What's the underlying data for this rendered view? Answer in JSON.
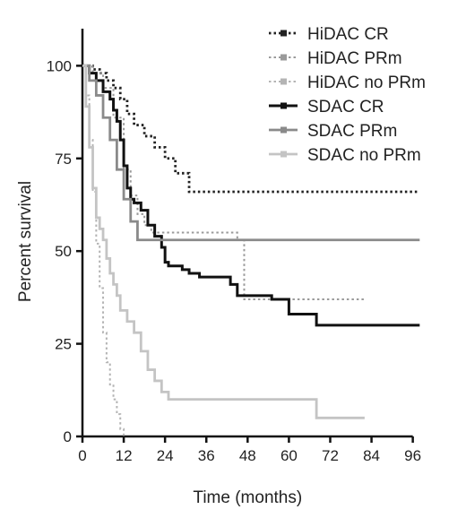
{
  "chart_data": {
    "type": "line",
    "step": true,
    "title": "",
    "xlabel": "Time (months)",
    "ylabel": "Percent survival",
    "xlim": [
      0,
      100
    ],
    "ylim": [
      0,
      110
    ],
    "xticks": [
      0,
      12,
      24,
      36,
      48,
      60,
      72,
      84,
      96
    ],
    "yticks": [
      0,
      25,
      50,
      75,
      100
    ],
    "grid": false,
    "legend_position": "top-right",
    "series": [
      {
        "name": "HiDAC CR",
        "color": "#222222",
        "dash": "dotted",
        "width": 2.8,
        "x": [
          0,
          3,
          5,
          7,
          9,
          11,
          13,
          15,
          18,
          21,
          24,
          27,
          31,
          33,
          98
        ],
        "y": [
          100,
          99,
          98,
          96,
          94,
          91,
          87,
          84,
          81,
          78,
          75,
          71,
          66,
          66,
          66
        ]
      },
      {
        "name": "HiDAC PRm",
        "color": "#9a9a9a",
        "dash": "dotted",
        "width": 2.0,
        "x": [
          0,
          3,
          6,
          9,
          12,
          14,
          16,
          18,
          20,
          24,
          27,
          31,
          35,
          45,
          47,
          57,
          82
        ],
        "y": [
          100,
          98,
          94,
          86,
          72,
          65,
          60,
          57,
          55,
          55,
          55,
          55,
          55,
          53,
          37,
          37,
          37
        ]
      },
      {
        "name": "HiDAC no PRm",
        "color": "#b4b4b4",
        "dash": "dotted",
        "width": 2.0,
        "x": [
          0,
          1,
          2,
          3,
          4,
          5,
          6,
          7,
          8,
          9,
          10,
          11,
          12
        ],
        "y": [
          100,
          92,
          80,
          66,
          52,
          40,
          28,
          20,
          14,
          10,
          6,
          2,
          0
        ]
      },
      {
        "name": "SDAC CR",
        "color": "#111111",
        "dash": "solid",
        "width": 3.0,
        "x": [
          0,
          2,
          4,
          6,
          8,
          9,
          10,
          11,
          12,
          13,
          14,
          15,
          17,
          19,
          21,
          23,
          24,
          25,
          27,
          29,
          31,
          34,
          37,
          40,
          43,
          45,
          50,
          55,
          60,
          65,
          68,
          72,
          98
        ],
        "y": [
          100,
          98,
          96,
          93,
          91,
          88,
          85,
          80,
          73,
          67,
          64,
          63,
          61,
          57,
          54,
          51,
          47,
          46,
          46,
          45,
          44,
          43,
          43,
          43,
          41,
          38,
          38,
          37,
          33,
          33,
          30,
          30,
          30
        ]
      },
      {
        "name": "SDAC PRm",
        "color": "#8a8a8a",
        "dash": "solid",
        "width": 2.8,
        "x": [
          0,
          2,
          4,
          6,
          8,
          10,
          12,
          14,
          16,
          20,
          98
        ],
        "y": [
          100,
          96,
          92,
          86,
          80,
          72,
          64,
          58,
          53,
          53,
          53
        ]
      },
      {
        "name": "SDAC no PRm",
        "color": "#c4c4c4",
        "dash": "solid",
        "width": 2.8,
        "x": [
          0,
          1,
          2,
          3,
          4,
          5,
          6,
          7,
          8,
          9,
          10,
          11,
          13,
          15,
          17,
          19,
          21,
          23,
          25,
          27,
          33,
          55,
          65,
          68,
          82
        ],
        "y": [
          100,
          89,
          78,
          67,
          59,
          56,
          53,
          48,
          44,
          41,
          38,
          34,
          31,
          28,
          23,
          18,
          15,
          12,
          10,
          10,
          10,
          10,
          10,
          5,
          5
        ]
      }
    ]
  }
}
